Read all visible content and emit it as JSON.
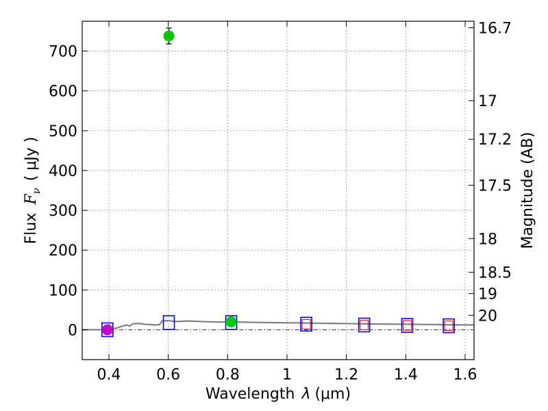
{
  "chart_data": {
    "type": "scatter",
    "xlabel": {
      "prefix": "Wavelength",
      "symbol": "λ",
      "unit": "(μm)"
    },
    "ylabel": {
      "prefix": "Flux",
      "symbol": "F",
      "subscript": "ν",
      "unit": "( μJy )"
    },
    "right_label": "Magnitude (AB)",
    "xlim": [
      0.31,
      1.63
    ],
    "ylim": [
      -75,
      775
    ],
    "x_ticks": [
      {
        "v": 0.4,
        "label": "0.4"
      },
      {
        "v": 0.6,
        "label": "0.6"
      },
      {
        "v": 0.8,
        "label": "0.8"
      },
      {
        "v": 1.0,
        "label": "1"
      },
      {
        "v": 1.2,
        "label": "1.2"
      },
      {
        "v": 1.4,
        "label": "1.4"
      },
      {
        "v": 1.6,
        "label": "1.6"
      }
    ],
    "y_ticks": [
      {
        "v": 0,
        "label": "0"
      },
      {
        "v": 100,
        "label": "100"
      },
      {
        "v": 200,
        "label": "200"
      },
      {
        "v": 300,
        "label": "300"
      },
      {
        "v": 400,
        "label": "400"
      },
      {
        "v": 500,
        "label": "500"
      },
      {
        "v": 600,
        "label": "600"
      },
      {
        "v": 700,
        "label": "700"
      }
    ],
    "mag_ticks": [
      {
        "mag": 16.7,
        "label": "16.7"
      },
      {
        "mag": 17,
        "label": "17"
      },
      {
        "mag": 17.2,
        "label": "17.2"
      },
      {
        "mag": 17.5,
        "label": "17.5"
      },
      {
        "mag": 18,
        "label": "18"
      },
      {
        "mag": 18.5,
        "label": "18.5"
      },
      {
        "mag": 19,
        "label": "19"
      },
      {
        "mag": 20,
        "label": "20"
      }
    ],
    "grid": true,
    "zero_line": true,
    "colors": {
      "model": "#808080",
      "box_blue": "#0000ff",
      "box_red": "#ff0000",
      "green": "#00cc00",
      "magenta": "#cc00cc",
      "errorbar": "#000000"
    },
    "model_sed": [
      [
        0.31,
        0
      ],
      [
        0.33,
        0
      ],
      [
        0.35,
        0
      ],
      [
        0.37,
        0
      ],
      [
        0.39,
        0
      ],
      [
        0.41,
        2
      ],
      [
        0.43,
        5
      ],
      [
        0.44,
        8
      ],
      [
        0.45,
        10
      ],
      [
        0.46,
        12
      ],
      [
        0.47,
        9
      ],
      [
        0.48,
        15
      ],
      [
        0.5,
        16
      ],
      [
        0.52,
        14
      ],
      [
        0.54,
        13
      ],
      [
        0.56,
        12
      ],
      [
        0.57,
        13
      ],
      [
        0.58,
        22
      ],
      [
        0.6,
        23
      ],
      [
        0.62,
        21
      ],
      [
        0.64,
        21
      ],
      [
        0.66,
        22
      ],
      [
        0.7,
        21
      ],
      [
        0.74,
        20
      ],
      [
        0.78,
        19.5
      ],
      [
        0.8,
        20
      ],
      [
        0.82,
        20
      ],
      [
        0.86,
        19
      ],
      [
        0.9,
        18.5
      ],
      [
        0.95,
        18
      ],
      [
        1.0,
        17.5
      ],
      [
        1.05,
        17
      ],
      [
        1.1,
        16.5
      ],
      [
        1.15,
        16
      ],
      [
        1.2,
        15.5
      ],
      [
        1.3,
        14.5
      ],
      [
        1.4,
        14
      ],
      [
        1.5,
        13
      ],
      [
        1.6,
        12
      ],
      [
        1.63,
        12
      ]
    ],
    "boxes": [
      {
        "x": 0.395,
        "y": 0,
        "edge": "blue"
      },
      {
        "x": 0.602,
        "y": 18,
        "edge": "blue"
      },
      {
        "x": 0.812,
        "y": 18,
        "edge": "blue"
      },
      {
        "x": 1.065,
        "y": 14,
        "edge": "blue",
        "inner": "red"
      },
      {
        "x": 1.26,
        "y": 12,
        "edge": "blue",
        "inner": "red"
      },
      {
        "x": 1.405,
        "y": 11,
        "edge": "blue",
        "inner": "red"
      },
      {
        "x": 1.545,
        "y": 10,
        "edge": "blue",
        "inner": "red"
      }
    ],
    "points": [
      {
        "x": 0.602,
        "y": 738,
        "err": 20,
        "color": "green"
      },
      {
        "x": 0.812,
        "y": 20,
        "err": 4,
        "color": "green"
      },
      {
        "x": 0.395,
        "y": 0,
        "err": 3,
        "color": "magenta"
      }
    ]
  }
}
